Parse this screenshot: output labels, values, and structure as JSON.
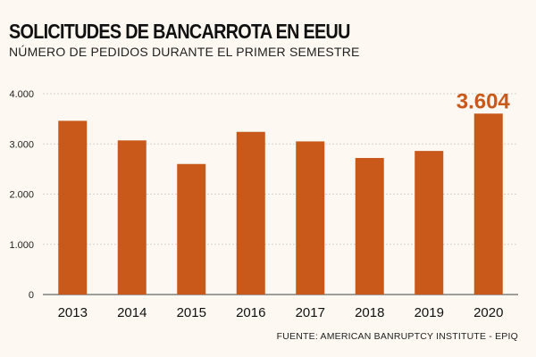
{
  "chart_data": {
    "type": "bar",
    "title": "SOLICITUDES DE BANCARROTA EN EEUU",
    "subtitle": "NÚMERO DE PEDIDOS DURANTE EL PRIMER SEMESTRE",
    "source": "FUENTE: AMERICAN BANRUPTCY INSTITUTE - EPIQ",
    "categories": [
      "2013",
      "2014",
      "2015",
      "2016",
      "2017",
      "2018",
      "2019",
      "2020"
    ],
    "values": [
      3460,
      3070,
      2600,
      3240,
      3050,
      2720,
      2860,
      3604
    ],
    "ylim": [
      0,
      4000
    ],
    "yticks": [
      0,
      1000,
      2000,
      3000,
      4000
    ],
    "ytick_labels": [
      "0",
      "1.000",
      "2.000",
      "3.000",
      "4.000"
    ],
    "grid": true,
    "xlabel": "",
    "ylabel": "",
    "annotation": {
      "category": "2020",
      "text": "3.604"
    },
    "bar_color": "#c9581b",
    "grid_color": "#d8d2ca"
  }
}
